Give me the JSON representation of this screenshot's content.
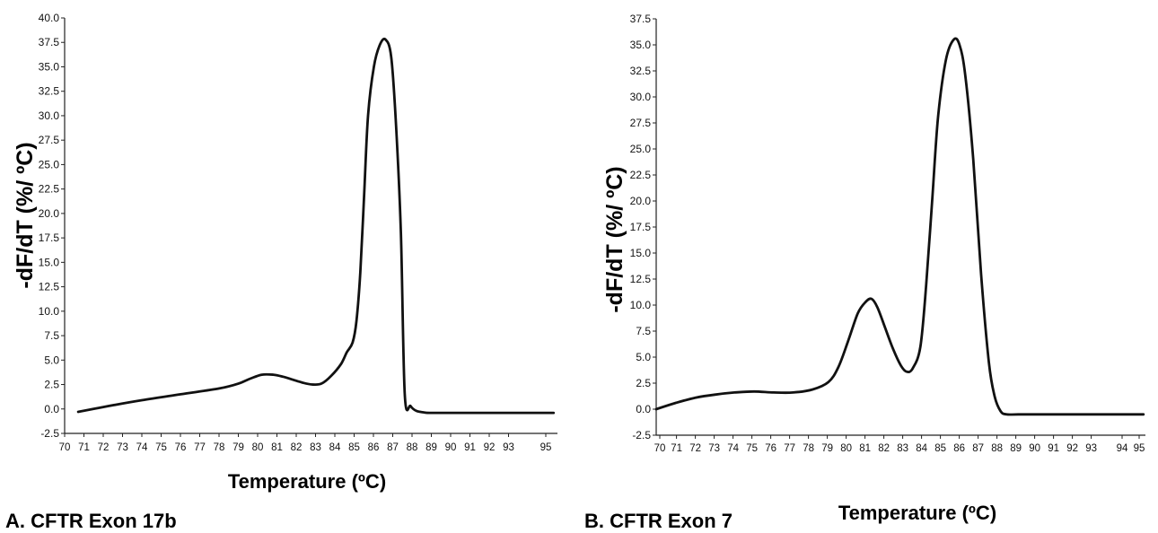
{
  "chart_data": [
    {
      "type": "line",
      "caption": "A. CFTR Exon 17b",
      "xlabel": "Temperature (ºC)",
      "ylabel": "-dF/dT (%/ ºC)",
      "xlim": [
        70,
        95.5
      ],
      "ylim": [
        -2.5,
        40
      ],
      "yticks": [
        "40.0",
        "37.5",
        "35.0",
        "32.5",
        "30.0",
        "27.5",
        "25.0",
        "22.5",
        "20.0",
        "17.5",
        "15.0",
        "12.5",
        "10.0",
        "7.5",
        "5.0",
        "2.5",
        "0.0",
        "-2.5"
      ],
      "xticks": [
        "70",
        "71",
        "72",
        "73",
        "74",
        "75",
        "76",
        "77",
        "78",
        "79",
        "80",
        "81",
        "82",
        "83",
        "84",
        "85",
        "86",
        "87",
        "88",
        "89",
        "90",
        "91",
        "92",
        "93",
        "95"
      ],
      "series": [
        {
          "x": [
            70.7,
            72,
            74,
            76,
            78,
            79,
            79.6,
            80.2,
            80.8,
            81.3,
            81.8,
            82.3,
            82.8,
            83.3,
            83.8,
            84.3,
            84.6,
            84.9,
            85.1,
            85.3,
            85.5,
            85.7,
            86.0,
            86.3,
            86.6,
            86.9,
            87.15,
            87.4,
            87.6,
            87.9,
            88.2,
            88.6,
            89,
            91,
            93,
            95.3
          ],
          "y": [
            -0.3,
            0.2,
            0.9,
            1.5,
            2.1,
            2.6,
            3.1,
            3.5,
            3.5,
            3.3,
            3.0,
            2.7,
            2.5,
            2.6,
            3.4,
            4.6,
            5.8,
            6.8,
            9.0,
            14.0,
            22.0,
            30.0,
            35.0,
            37.2,
            37.8,
            36.0,
            29.0,
            18.0,
            1.5,
            0.3,
            -0.2,
            -0.35,
            -0.4,
            -0.4,
            -0.4,
            -0.4
          ]
        }
      ]
    },
    {
      "type": "line",
      "caption": "B. CFTR Exon 7",
      "xlabel": "Temperature (ºC)",
      "ylabel": "-dF/dT (%/ ºC)",
      "xlim": [
        70,
        95
      ],
      "ylim": [
        -2.5,
        37.5
      ],
      "yticks": [
        "37.5",
        "35.0",
        "32.5",
        "30.0",
        "27.5",
        "25.0",
        "22.5",
        "20.0",
        "17.5",
        "15.0",
        "12.5",
        "10.0",
        "7.5",
        "5.0",
        "2.5",
        "0.0",
        "-2.5"
      ],
      "xticks": [
        "70",
        "71",
        "72",
        "73",
        "74",
        "75",
        "76",
        "77",
        "78",
        "79",
        "80",
        "81",
        "82",
        "83",
        "84",
        "85",
        "86",
        "87",
        "88",
        "89",
        "90",
        "91",
        "92",
        "93",
        "94",
        "95"
      ],
      "series": [
        {
          "x": [
            70,
            71,
            72,
            73,
            74,
            75,
            76,
            77,
            78,
            78.8,
            79.3,
            79.8,
            80.3,
            80.7,
            81.0,
            81.3,
            81.7,
            82.1,
            82.5,
            82.8,
            83.1,
            83.5,
            83.8,
            84.1,
            84.4,
            84.8,
            85.2,
            85.5,
            85.8,
            86.2,
            86.6,
            87.0,
            87.3,
            87.6,
            87.9,
            88.5,
            90,
            92,
            94,
            94.9
          ],
          "y": [
            0.0,
            0.6,
            1.1,
            1.4,
            1.6,
            1.7,
            1.6,
            1.6,
            1.9,
            2.6,
            4.0,
            6.5,
            9.2,
            10.3,
            10.6,
            9.8,
            7.8,
            5.8,
            4.2,
            3.6,
            3.9,
            6.0,
            12.0,
            20.0,
            28.0,
            33.5,
            35.5,
            35.0,
            32.0,
            24.0,
            13.0,
            4.5,
            1.2,
            -0.2,
            -0.5,
            -0.5,
            -0.5,
            -0.5,
            -0.5,
            -0.5
          ]
        }
      ]
    }
  ]
}
